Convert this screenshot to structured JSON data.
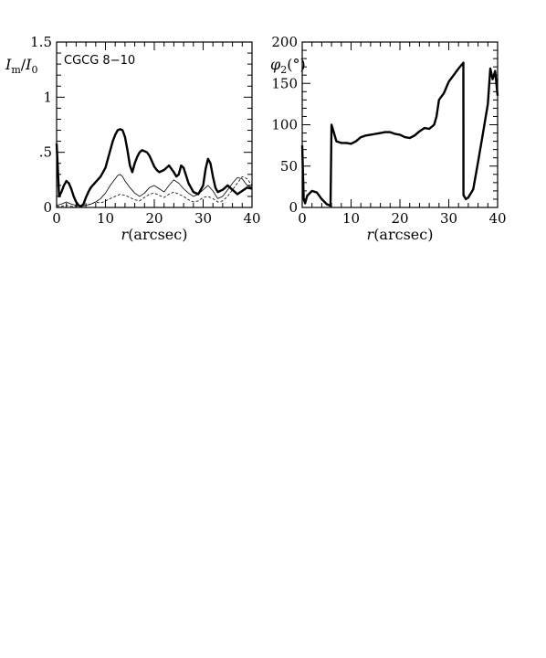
{
  "chart_data": [
    {
      "type": "line",
      "annotation": "CGCG 8−10",
      "xlabel": "r(arcsec)",
      "ylabel": "Im/I0",
      "xlim": [
        0,
        40
      ],
      "ylim": [
        0,
        1.5
      ],
      "xticks": [
        0,
        10,
        20,
        30,
        40
      ],
      "yticks": [
        0,
        0.5,
        1,
        1.5
      ],
      "xtick_labels": [
        "0",
        "10",
        "20",
        "30",
        "40"
      ],
      "ytick_labels": [
        "0",
        ".5",
        "1",
        "1.5"
      ],
      "grid": false,
      "series": [
        {
          "style": "solid-thick",
          "x": [
            0,
            0.2,
            0.5,
            1,
            1.5,
            2,
            2.5,
            3,
            3.5,
            4,
            4.5,
            5,
            5.5,
            6,
            6.5,
            7,
            8,
            9,
            10,
            11,
            11.5,
            12,
            12.5,
            13,
            13.5,
            14,
            14.5,
            15,
            15.5,
            16,
            16.5,
            17,
            17.5,
            18,
            18.5,
            19,
            19.5,
            20,
            20.5,
            21,
            22,
            23,
            24,
            24.5,
            25,
            25.5,
            26,
            27,
            28,
            29,
            30,
            30.5,
            31,
            31.5,
            32,
            32.5,
            33,
            34,
            35,
            36,
            37,
            38,
            39,
            40
          ],
          "y": [
            0.58,
            0.4,
            0.1,
            0.14,
            0.2,
            0.24,
            0.22,
            0.17,
            0.1,
            0.05,
            0.02,
            0.01,
            0.03,
            0.09,
            0.14,
            0.18,
            0.23,
            0.28,
            0.36,
            0.52,
            0.6,
            0.66,
            0.7,
            0.71,
            0.7,
            0.64,
            0.52,
            0.38,
            0.32,
            0.4,
            0.46,
            0.5,
            0.52,
            0.51,
            0.5,
            0.47,
            0.42,
            0.37,
            0.34,
            0.32,
            0.34,
            0.38,
            0.32,
            0.28,
            0.3,
            0.38,
            0.36,
            0.22,
            0.14,
            0.12,
            0.2,
            0.35,
            0.44,
            0.4,
            0.28,
            0.18,
            0.14,
            0.16,
            0.2,
            0.16,
            0.12,
            0.15,
            0.18,
            0.17
          ]
        },
        {
          "style": "solid-thin",
          "x": [
            0,
            1,
            2,
            3,
            4,
            5,
            6,
            7,
            8,
            9,
            10,
            11,
            12,
            12.5,
            13,
            13.5,
            14,
            15,
            16,
            17,
            18,
            19,
            20,
            21,
            22,
            23,
            24,
            25,
            26,
            27,
            28,
            29,
            30,
            31,
            32,
            33,
            34,
            35,
            36,
            37,
            38,
            39,
            40
          ],
          "y": [
            0.02,
            0.03,
            0.05,
            0.03,
            0.02,
            0.01,
            0.02,
            0.03,
            0.05,
            0.08,
            0.13,
            0.2,
            0.26,
            0.29,
            0.3,
            0.28,
            0.24,
            0.18,
            0.13,
            0.1,
            0.13,
            0.18,
            0.2,
            0.17,
            0.14,
            0.2,
            0.25,
            0.22,
            0.17,
            0.13,
            0.1,
            0.12,
            0.16,
            0.2,
            0.15,
            0.08,
            0.1,
            0.16,
            0.22,
            0.27,
            0.26,
            0.2,
            0.18
          ]
        },
        {
          "style": "dashed",
          "x": [
            0,
            1,
            2,
            3,
            4,
            5,
            6,
            7,
            8,
            9,
            10,
            11,
            12,
            13,
            14,
            15,
            16,
            17,
            18,
            19,
            20,
            21,
            22,
            23,
            24,
            25,
            26,
            27,
            28,
            29,
            30,
            31,
            32,
            33,
            34,
            35,
            36,
            37,
            38,
            39,
            40
          ],
          "y": [
            0.01,
            0.01,
            0.02,
            0.01,
            0.01,
            0.01,
            0.02,
            0.03,
            0.05,
            0.04,
            0.06,
            0.08,
            0.1,
            0.12,
            0.11,
            0.09,
            0.07,
            0.06,
            0.09,
            0.12,
            0.13,
            0.11,
            0.09,
            0.12,
            0.14,
            0.12,
            0.1,
            0.07,
            0.05,
            0.06,
            0.09,
            0.1,
            0.08,
            0.05,
            0.06,
            0.1,
            0.16,
            0.22,
            0.28,
            0.26,
            0.2
          ]
        }
      ]
    },
    {
      "type": "line",
      "xlabel": "r(arcsec)",
      "ylabel": "φ2(°)",
      "xlim": [
        0,
        40
      ],
      "ylim": [
        0,
        200
      ],
      "xticks": [
        0,
        10,
        20,
        30,
        40
      ],
      "yticks": [
        0,
        50,
        100,
        150,
        200
      ],
      "xtick_labels": [
        "0",
        "10",
        "20",
        "30",
        "40"
      ],
      "ytick_labels": [
        "0",
        "50",
        "100",
        "150",
        "200"
      ],
      "grid": false,
      "series": [
        {
          "style": "solid-thick",
          "x": [
            0,
            0.3,
            0.6,
            1,
            2,
            3,
            4,
            5,
            5.8,
            6,
            6.5,
            7,
            8,
            9,
            10,
            11,
            12,
            13,
            14,
            15,
            16,
            17,
            18,
            19,
            20,
            21,
            22,
            23,
            24,
            25,
            26,
            27,
            27.5,
            28,
            29,
            30,
            31,
            32,
            33,
            33.01,
            33.5,
            34,
            35,
            36,
            37,
            38,
            38.5,
            39,
            39.5,
            40
          ],
          "y": [
            75,
            10,
            5,
            14,
            20,
            18,
            10,
            4,
            2,
            100,
            90,
            80,
            78,
            78,
            77,
            80,
            85,
            87,
            88,
            89,
            90,
            91,
            91,
            89,
            88,
            85,
            84,
            87,
            92,
            96,
            95,
            100,
            110,
            130,
            138,
            152,
            160,
            168,
            175,
            15,
            10,
            12,
            22,
            55,
            90,
            125,
            168,
            155,
            165,
            135
          ]
        }
      ]
    }
  ]
}
